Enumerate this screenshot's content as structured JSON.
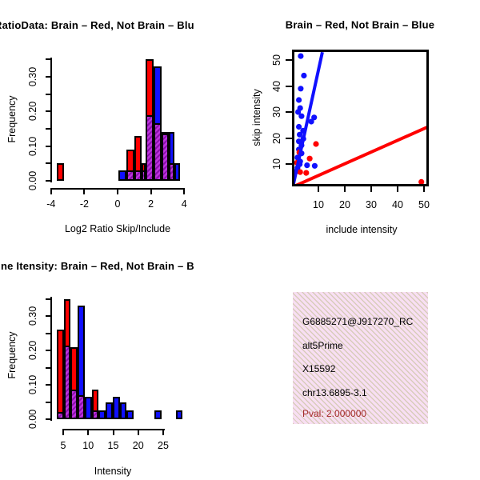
{
  "colors": {
    "red": "#FF0000",
    "blue": "#1010FF",
    "overlap_base": "#BC34DC",
    "overlap_stripe": "#8A10AC",
    "info_bg": "#F8DFF3",
    "info_hatch": "#D8CCBB",
    "pval_text": "#A52A2A",
    "axis": "#000000"
  },
  "chart_data": [
    {
      "id": "log2_ratio_hist",
      "type": "bar",
      "variant": "overlaid-histograms",
      "title": "RatioData: Brain – Red, Not Brain – Blu",
      "xlabel": "Log2 Ratio Skip/Include",
      "ylabel": "Frequency",
      "xlim": [
        -4.3,
        4.3
      ],
      "ylim": [
        0,
        0.35
      ],
      "x_ticks": [
        -4,
        -2,
        0,
        2,
        4
      ],
      "y_tick_values": [
        0,
        0.1,
        0.2,
        0.3
      ],
      "y_tick_labels": [
        "0.00",
        "0.10",
        "0.20",
        "0.30"
      ],
      "y_minor_step": 0.05,
      "legend_note": {
        "red": "Brain",
        "blue": "Not Brain"
      },
      "bars": [
        {
          "x0": -3.65,
          "x1": -3.2,
          "red": 0.05,
          "blue": 0
        },
        {
          "x0": 0.05,
          "x1": 0.53,
          "red": 0,
          "blue": 0.03
        },
        {
          "x0": 0.53,
          "x1": 1.0,
          "red": 0.09,
          "blue": 0.03
        },
        {
          "x0": 1.0,
          "x1": 1.45,
          "red": 0.13,
          "blue": 0.03
        },
        {
          "x0": 1.45,
          "x1": 1.67,
          "red": 0.05,
          "blue": 0.03
        },
        {
          "x0": 1.67,
          "x1": 2.15,
          "red": 0.35,
          "blue": 0.19
        },
        {
          "x0": 2.15,
          "x1": 2.63,
          "red": 0.165,
          "blue": 0.33
        },
        {
          "x0": 2.63,
          "x1": 3.08,
          "red": 0.14,
          "blue": 0.135
        },
        {
          "x0": 3.08,
          "x1": 3.43,
          "red": 0.05,
          "blue": 0.14
        },
        {
          "x0": 3.43,
          "x1": 3.75,
          "red": 0,
          "blue": 0.05
        }
      ]
    },
    {
      "id": "intensity_scatter",
      "type": "scatter",
      "title": "Brain – Red, Not Brain – Blue",
      "xlabel": "include intensity",
      "ylabel": "skip intensity",
      "xlim": [
        0,
        52
      ],
      "ylim": [
        0,
        53
      ],
      "x_ticks": [
        10,
        20,
        30,
        40,
        50
      ],
      "y_ticks": [
        10,
        20,
        30,
        40,
        50
      ],
      "blue_points": [
        [
          3.3,
          51.5
        ],
        [
          4.5,
          44
        ],
        [
          3.3,
          39
        ],
        [
          2.6,
          34.6
        ],
        [
          3.1,
          31.5
        ],
        [
          2.3,
          30
        ],
        [
          3.6,
          28.4
        ],
        [
          8.4,
          27.9
        ],
        [
          7.3,
          26.3
        ],
        [
          2.6,
          24.3
        ],
        [
          4.2,
          22.8
        ],
        [
          2.9,
          21.3
        ],
        [
          4.3,
          19.7
        ],
        [
          2.6,
          18.7
        ],
        [
          3.6,
          17.2
        ],
        [
          2.6,
          15.6
        ],
        [
          3.6,
          14.1
        ],
        [
          2.1,
          12.5
        ],
        [
          3.1,
          11
        ],
        [
          2.9,
          9.9
        ],
        [
          5.7,
          9.5
        ],
        [
          8.6,
          9.3
        ],
        [
          2.1,
          8.5
        ],
        [
          1.7,
          7.2
        ]
      ],
      "red_points": [
        [
          9.1,
          17.7
        ],
        [
          6.7,
          12.1
        ],
        [
          2.8,
          14.5
        ],
        [
          1.9,
          10.5
        ],
        [
          3.1,
          6.9
        ],
        [
          5.4,
          6.6
        ],
        [
          49,
          3.1
        ]
      ],
      "lines": [
        {
          "color": "blue",
          "x1": 0.5,
          "y1": 2,
          "x2": 11.5,
          "y2": 53
        },
        {
          "color": "red",
          "x1": 1,
          "y1": 1.5,
          "x2": 51.5,
          "y2": 24.3
        }
      ]
    },
    {
      "id": "gene_intensity_hist",
      "type": "bar",
      "variant": "overlaid-histograms",
      "title": "ne Itensity: Brain – Red, Not Brain – B",
      "xlabel": "Intensity",
      "ylabel": "Frequency",
      "xlim": [
        3.5,
        29
      ],
      "ylim": [
        0,
        0.35
      ],
      "x_ticks": [
        5,
        10,
        15,
        20,
        25
      ],
      "y_tick_values": [
        0,
        0.1,
        0.2,
        0.3
      ],
      "y_tick_labels": [
        "0.00",
        "0.10",
        "0.20",
        "0.30"
      ],
      "y_minor_step": 0.05,
      "legend_note": {
        "red": "Brain",
        "blue": "Not Brain"
      },
      "bars": [
        {
          "x0": 3.7,
          "x1": 5.1,
          "red": 0.26,
          "blue": 0.02
        },
        {
          "x0": 5.1,
          "x1": 6.5,
          "red": 0.35,
          "blue": 0.215
        },
        {
          "x0": 6.5,
          "x1": 7.9,
          "red": 0.21,
          "blue": 0.085
        },
        {
          "x0": 7.9,
          "x1": 9.3,
          "red": 0.07,
          "blue": 0.33
        },
        {
          "x0": 9.3,
          "x1": 10.7,
          "red": 0,
          "blue": 0.065
        },
        {
          "x0": 10.7,
          "x1": 12.1,
          "red": 0.085,
          "blue": 0.025
        },
        {
          "x0": 12.1,
          "x1": 13.5,
          "red": 0,
          "blue": 0.025
        },
        {
          "x0": 13.5,
          "x1": 14.9,
          "red": 0,
          "blue": 0.05
        },
        {
          "x0": 14.9,
          "x1": 16.3,
          "red": 0,
          "blue": 0.065
        },
        {
          "x0": 16.3,
          "x1": 17.7,
          "red": 0,
          "blue": 0.05
        },
        {
          "x0": 17.7,
          "x1": 19.1,
          "red": 0,
          "blue": 0.025
        },
        {
          "x0": 23.3,
          "x1": 24.7,
          "red": 0,
          "blue": 0.025
        },
        {
          "x0": 27.5,
          "x1": 28.9,
          "red": 0,
          "blue": 0.025
        }
      ]
    }
  ],
  "info_box": {
    "lines": [
      "G6885271@J917270_RC",
      "alt5Prime",
      "X15592",
      "chr13.6895-3.1"
    ],
    "pval": "Pval: 2.000000"
  }
}
